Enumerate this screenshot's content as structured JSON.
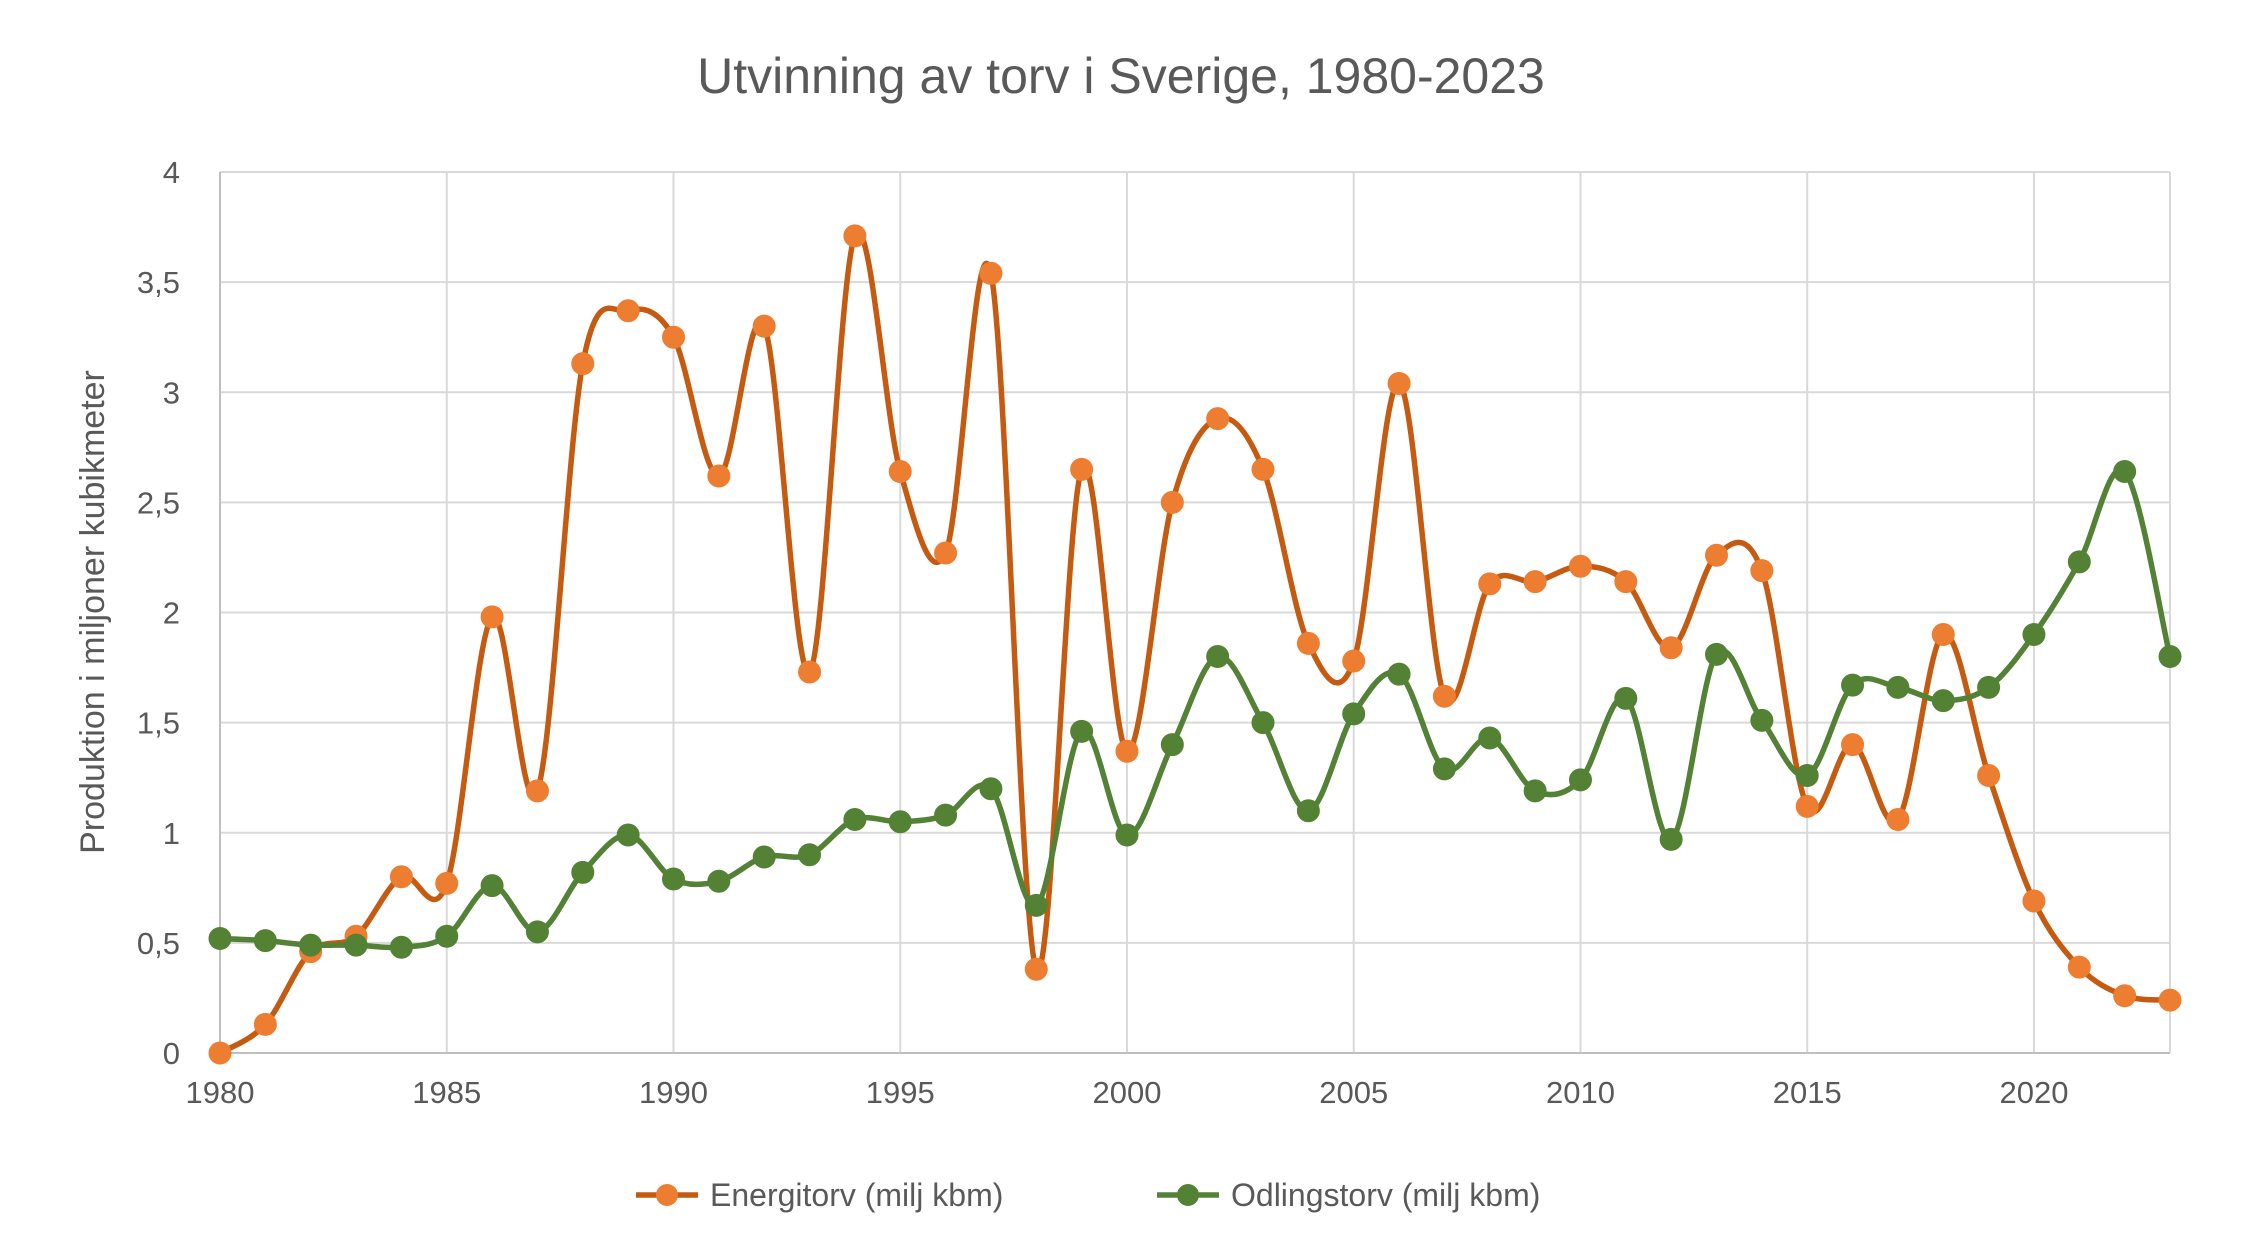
{
  "chart_data": {
    "type": "line",
    "title": "Utvinning av torv i Sverige, 1980-2023",
    "ylabel": "Produktion i miljoner kubikmeter",
    "xlabel": "",
    "xlim": [
      1980,
      2023
    ],
    "ylim": [
      0,
      4
    ],
    "x_ticks": [
      "1980",
      "1985",
      "1990",
      "1995",
      "2000",
      "2005",
      "2010",
      "2015",
      "2020"
    ],
    "x_tick_values": [
      1980,
      1985,
      1990,
      1995,
      2000,
      2005,
      2010,
      2015,
      2020
    ],
    "y_ticks": [
      "0",
      "0,5",
      "1",
      "1,5",
      "2",
      "2,5",
      "3",
      "3,5",
      "4"
    ],
    "y_tick_values": [
      0,
      0.5,
      1,
      1.5,
      2,
      2.5,
      3,
      3.5,
      4
    ],
    "grid": true,
    "smooth": true,
    "legend_position": "bottom",
    "x": [
      1980,
      1981,
      1982,
      1983,
      1984,
      1985,
      1986,
      1987,
      1988,
      1989,
      1990,
      1991,
      1992,
      1993,
      1994,
      1995,
      1996,
      1997,
      1998,
      1999,
      2000,
      2001,
      2002,
      2003,
      2004,
      2005,
      2006,
      2007,
      2008,
      2009,
      2010,
      2011,
      2012,
      2013,
      2014,
      2015,
      2016,
      2017,
      2018,
      2019,
      2020,
      2021,
      2022,
      2023
    ],
    "series": [
      {
        "name": "Energitorv (milj kbm)",
        "line_color": "#c55a11",
        "marker_color": "#ed7d31",
        "values": [
          0.0,
          0.13,
          0.46,
          0.53,
          0.8,
          0.77,
          1.98,
          1.19,
          3.13,
          3.37,
          3.25,
          2.62,
          3.3,
          1.73,
          3.71,
          2.64,
          2.27,
          3.54,
          0.38,
          2.65,
          1.37,
          2.5,
          2.88,
          2.65,
          1.86,
          1.78,
          3.04,
          1.62,
          2.13,
          2.14,
          2.21,
          2.14,
          1.84,
          2.26,
          2.19,
          1.12,
          1.4,
          1.06,
          1.9,
          1.26,
          0.69,
          0.39,
          0.26,
          0.24
        ]
      },
      {
        "name": "Odlingstorv (milj kbm)",
        "line_color": "#538135",
        "marker_color": "#548235",
        "values": [
          0.52,
          0.51,
          0.49,
          0.49,
          0.48,
          0.53,
          0.76,
          0.55,
          0.82,
          0.99,
          0.79,
          0.78,
          0.89,
          0.9,
          1.06,
          1.05,
          1.08,
          1.2,
          0.67,
          1.46,
          0.99,
          1.4,
          1.8,
          1.5,
          1.1,
          1.54,
          1.72,
          1.29,
          1.43,
          1.19,
          1.24,
          1.61,
          0.97,
          1.81,
          1.51,
          1.26,
          1.67,
          1.66,
          1.6,
          1.66,
          1.9,
          2.23,
          2.64,
          1.8
        ]
      }
    ]
  }
}
